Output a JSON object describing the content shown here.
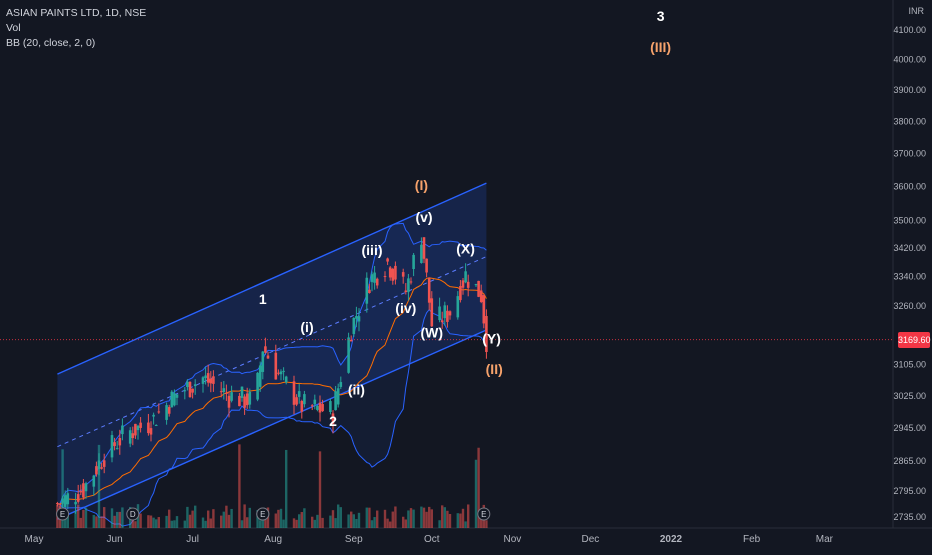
{
  "legend": {
    "symbol": "ASIAN PAINTS LTD, 1D, NSE",
    "volume": "Vol",
    "bb": "BB (20, close, 2, 0)"
  },
  "currency": "INR",
  "last_price": "3169.60",
  "colors": {
    "background": "#131722",
    "up": "#26a69a",
    "down": "#ef5350",
    "bb_band": "#2962ff",
    "basis": "#ff6d00",
    "channel_fill": "#1e3a8a",
    "wave_white": "#ffffff",
    "wave_orange": "#f6a26b"
  },
  "chart_data": {
    "type": "candlestick",
    "x_labels": [
      "May",
      "Jun",
      "Jul",
      "Aug",
      "Sep",
      "Oct",
      "Nov",
      "Dec",
      "2022",
      "Feb",
      "Mar"
    ],
    "y_ticks": [
      "4100.00",
      "4000.00",
      "3900.00",
      "3800.00",
      "3700.00",
      "3600.00",
      "3500.00",
      "3420.00",
      "3340.00",
      "3260.00",
      "3169.60",
      "3105.00",
      "3025.00",
      "2945.00",
      "2865.00",
      "2795.00",
      "2735.00"
    ],
    "y_scale": "log",
    "ylim": [
      2705,
      4200
    ],
    "price_path": [
      [
        "2021-05-10",
        2765
      ],
      [
        "2021-05-20",
        2800
      ],
      [
        "2021-05-28",
        2880
      ],
      [
        "2021-06-05",
        2930
      ],
      [
        "2021-06-15",
        2960
      ],
      [
        "2021-06-25",
        3030
      ],
      [
        "2021-07-05",
        3070
      ],
      [
        "2021-07-15",
        3025
      ],
      [
        "2021-07-25",
        3010
      ],
      [
        "2021-07-28",
        3150
      ],
      [
        "2021-08-03",
        3080
      ],
      [
        "2021-08-12",
        3000
      ],
      [
        "2021-08-24",
        2985
      ],
      [
        "2021-08-31",
        3200
      ],
      [
        "2021-09-07",
        3330
      ],
      [
        "2021-09-14",
        3380
      ],
      [
        "2021-09-21",
        3300
      ],
      [
        "2021-09-27",
        3460
      ],
      [
        "2021-10-01",
        3210
      ],
      [
        "2021-10-08",
        3245
      ],
      [
        "2021-10-14",
        3345
      ],
      [
        "2021-10-20",
        3290
      ],
      [
        "2021-10-22",
        3170
      ]
    ],
    "annotations": [
      {
        "label": "1",
        "color": "white",
        "date": "2021-07-28",
        "price": 3265
      },
      {
        "label": "2",
        "color": "white",
        "date": "2021-08-24",
        "price": 2950
      },
      {
        "label": "(i)",
        "color": "white",
        "date": "2021-08-14",
        "price": 3190
      },
      {
        "label": "(ii)",
        "color": "white",
        "date": "2021-09-02",
        "price": 3028
      },
      {
        "label": "(iii)",
        "color": "white",
        "date": "2021-09-08",
        "price": 3400
      },
      {
        "label": "(iv)",
        "color": "white",
        "date": "2021-09-21",
        "price": 3240
      },
      {
        "label": "(v)",
        "color": "white",
        "date": "2021-09-28",
        "price": 3495
      },
      {
        "label": "(I)",
        "color": "orange",
        "date": "2021-09-27",
        "price": 3590
      },
      {
        "label": "(W)",
        "color": "white",
        "date": "2021-10-01",
        "price": 3175
      },
      {
        "label": "(X)",
        "color": "white",
        "date": "2021-10-14",
        "price": 3405
      },
      {
        "label": "(Y)",
        "color": "white",
        "date": "2021-10-24",
        "price": 3160
      },
      {
        "label": "(II)",
        "color": "orange",
        "date": "2021-10-25",
        "price": 3080
      },
      {
        "label": "3",
        "color": "white",
        "date": "2021-12-28",
        "price": 4130
      },
      {
        "label": "(III)",
        "color": "orange",
        "date": "2021-12-28",
        "price": 4025
      }
    ],
    "event_markers": [
      "E",
      "E",
      "D",
      "E",
      "E"
    ]
  }
}
